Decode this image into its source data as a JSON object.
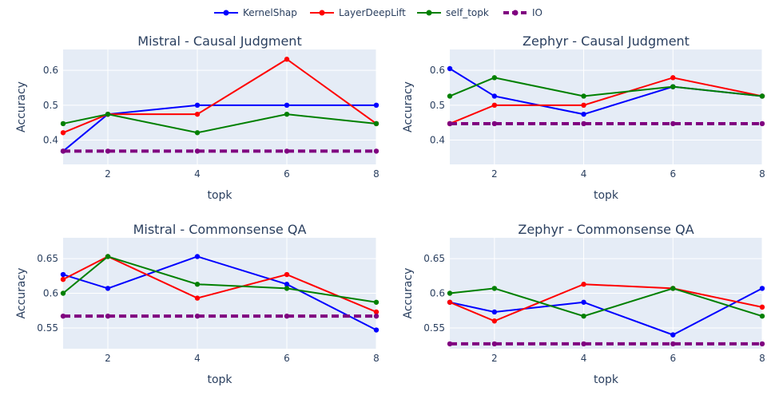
{
  "legend": {
    "items": [
      {
        "name": "KernelShap",
        "color": "#0000ff",
        "dash": false
      },
      {
        "name": "LayerDeepLift",
        "color": "#ff0000",
        "dash": false
      },
      {
        "name": "self_topk",
        "color": "#008000",
        "dash": false
      },
      {
        "name": "IO",
        "color": "#800080",
        "dash": true
      }
    ]
  },
  "chart_data": [
    {
      "type": "line",
      "title": "Mistral - Causal Judgment",
      "xlabel": "topk",
      "ylabel": "Accuracy",
      "x": [
        1,
        2,
        4,
        6,
        8
      ],
      "xlim": [
        1,
        8
      ],
      "ylim": [
        0.33,
        0.66
      ],
      "xticks": [
        2,
        4,
        6,
        8
      ],
      "yticks": [
        0.4,
        0.5,
        0.6
      ],
      "ytick_labels": [
        "0.4",
        "0.5",
        "0.6"
      ],
      "series": [
        {
          "name": "KernelShap",
          "color": "#0000ff",
          "values": [
            0.368,
            0.474,
            0.5,
            0.5,
            0.5
          ]
        },
        {
          "name": "LayerDeepLift",
          "color": "#ff0000",
          "values": [
            0.421,
            0.474,
            0.474,
            0.632,
            0.447
          ]
        },
        {
          "name": "self_topk",
          "color": "#008000",
          "values": [
            0.447,
            0.474,
            0.421,
            0.474,
            0.447
          ]
        },
        {
          "name": "IO",
          "color": "#800080",
          "dash": true,
          "values": [
            0.368,
            0.368,
            0.368,
            0.368,
            0.368
          ]
        }
      ]
    },
    {
      "type": "line",
      "title": "Zephyr - Causal Judgment",
      "xlabel": "topk",
      "ylabel": "Accuracy",
      "x": [
        1,
        2,
        4,
        6,
        8
      ],
      "xlim": [
        1,
        8
      ],
      "ylim": [
        0.33,
        0.66
      ],
      "xticks": [
        2,
        4,
        6,
        8
      ],
      "yticks": [
        0.4,
        0.5,
        0.6
      ],
      "ytick_labels": [
        "0.4",
        "0.5",
        "0.6"
      ],
      "series": [
        {
          "name": "KernelShap",
          "color": "#0000ff",
          "values": [
            0.605,
            0.526,
            0.474,
            0.553,
            0.526
          ]
        },
        {
          "name": "LayerDeepLift",
          "color": "#ff0000",
          "values": [
            0.447,
            0.5,
            0.5,
            0.579,
            0.526
          ]
        },
        {
          "name": "self_topk",
          "color": "#008000",
          "values": [
            0.526,
            0.579,
            0.526,
            0.553,
            0.526
          ]
        },
        {
          "name": "IO",
          "color": "#800080",
          "dash": true,
          "values": [
            0.447,
            0.447,
            0.447,
            0.447,
            0.447
          ]
        }
      ]
    },
    {
      "type": "line",
      "title": "Mistral - Commonsense QA",
      "xlabel": "topk",
      "ylabel": "Accuracy",
      "x": [
        1,
        2,
        4,
        6,
        8
      ],
      "xlim": [
        1,
        8
      ],
      "ylim": [
        0.52,
        0.68
      ],
      "xticks": [
        2,
        4,
        6,
        8
      ],
      "yticks": [
        0.55,
        0.6,
        0.65
      ],
      "ytick_labels": [
        "0.55",
        "0.6",
        "0.65"
      ],
      "series": [
        {
          "name": "KernelShap",
          "color": "#0000ff",
          "values": [
            0.627,
            0.607,
            0.653,
            0.613,
            0.547
          ]
        },
        {
          "name": "LayerDeepLift",
          "color": "#ff0000",
          "values": [
            0.62,
            0.653,
            0.593,
            0.627,
            0.573
          ]
        },
        {
          "name": "self_topk",
          "color": "#008000",
          "values": [
            0.6,
            0.653,
            0.613,
            0.607,
            0.587
          ]
        },
        {
          "name": "IO",
          "color": "#800080",
          "dash": true,
          "values": [
            0.567,
            0.567,
            0.567,
            0.567,
            0.567
          ]
        }
      ]
    },
    {
      "type": "line",
      "title": "Zephyr - Commonsense QA",
      "xlabel": "topk",
      "ylabel": "Accuracy",
      "x": [
        1,
        2,
        4,
        6,
        8
      ],
      "xlim": [
        1,
        8
      ],
      "ylim": [
        0.52,
        0.68
      ],
      "xticks": [
        2,
        4,
        6,
        8
      ],
      "yticks": [
        0.55,
        0.6,
        0.65
      ],
      "ytick_labels": [
        "0.55",
        "0.6",
        "0.65"
      ],
      "series": [
        {
          "name": "KernelShap",
          "color": "#0000ff",
          "values": [
            0.587,
            0.573,
            0.587,
            0.54,
            0.607
          ]
        },
        {
          "name": "LayerDeepLift",
          "color": "#ff0000",
          "values": [
            0.587,
            0.56,
            0.613,
            0.607,
            0.58
          ]
        },
        {
          "name": "self_topk",
          "color": "#008000",
          "values": [
            0.6,
            0.607,
            0.567,
            0.607,
            0.567
          ]
        },
        {
          "name": "IO",
          "color": "#800080",
          "dash": true,
          "values": [
            0.527,
            0.527,
            0.527,
            0.527,
            0.527
          ]
        }
      ]
    }
  ]
}
